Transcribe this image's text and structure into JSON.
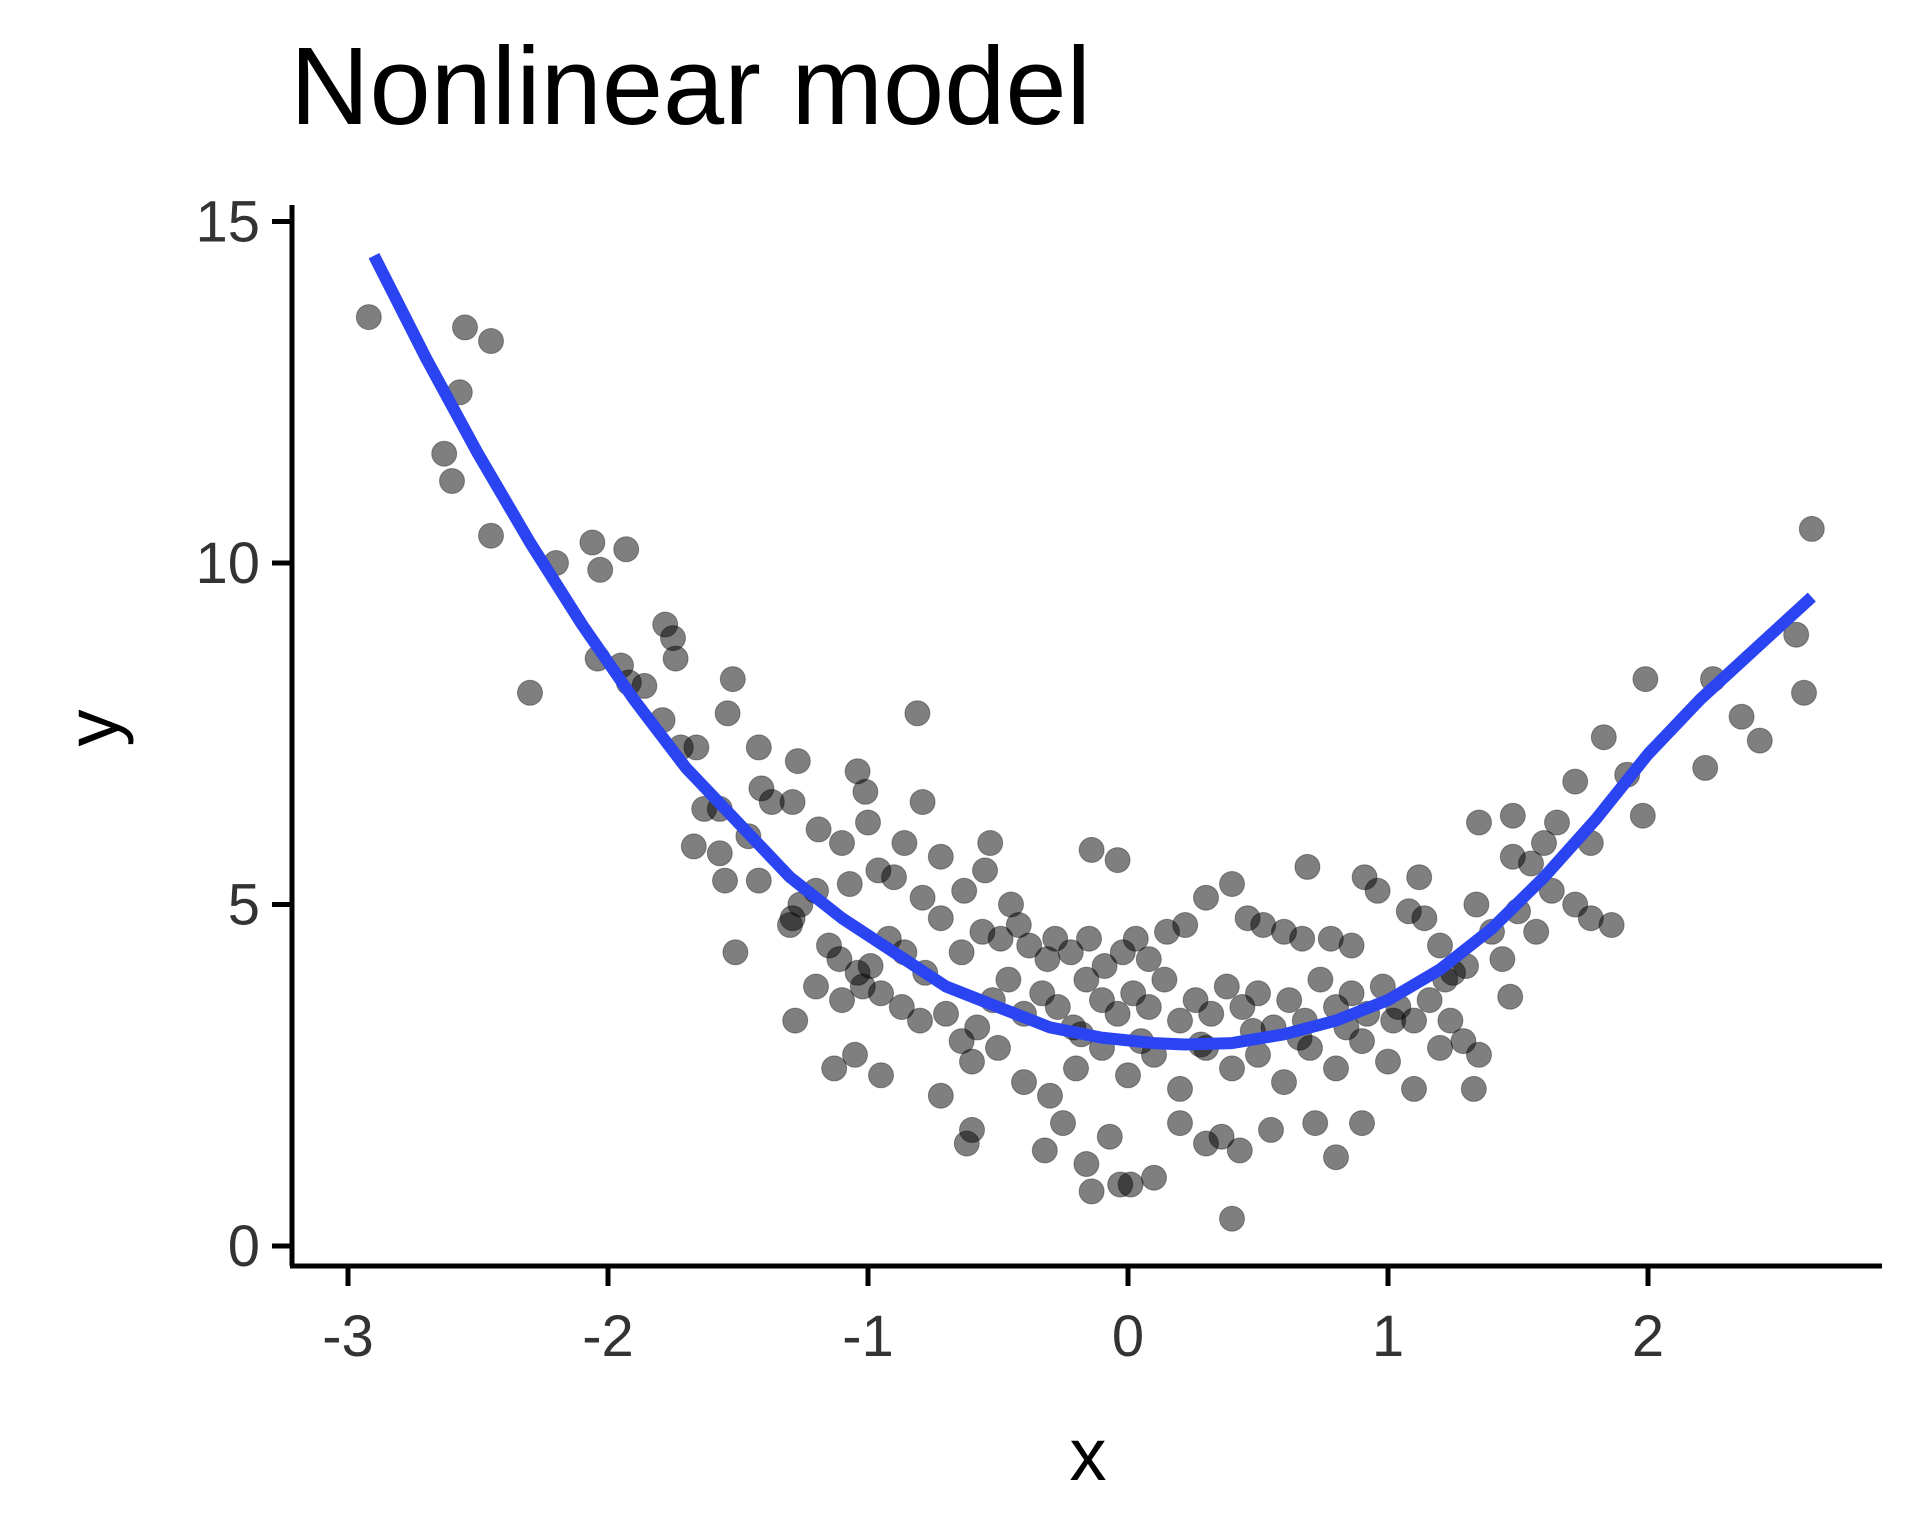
{
  "chart_data": {
    "type": "scatter",
    "title": "Nonlinear model",
    "xlabel": "x",
    "ylabel": "y",
    "xlim": [
      -3.2,
      2.9
    ],
    "ylim": [
      -0.3,
      15.2
    ],
    "x_ticks": [
      -3,
      -2,
      -1,
      0,
      1,
      2
    ],
    "y_ticks": [
      0,
      5,
      10,
      15
    ],
    "x_tick_labels": [
      "-3",
      "-2",
      "-1",
      "0",
      "1",
      "2"
    ],
    "y_tick_labels": [
      "0",
      "5",
      "10",
      "15"
    ],
    "grid": false,
    "points": [
      [
        -2.92,
        13.6
      ],
      [
        -2.55,
        13.45
      ],
      [
        -2.45,
        13.25
      ],
      [
        -2.57,
        12.5
      ],
      [
        -2.63,
        11.6
      ],
      [
        -2.6,
        11.2
      ],
      [
        -2.45,
        10.4
      ],
      [
        -2.2,
        10.0
      ],
      [
        -2.06,
        10.3
      ],
      [
        -2.03,
        9.9
      ],
      [
        -1.93,
        10.2
      ],
      [
        -1.78,
        9.1
      ],
      [
        -1.75,
        8.9
      ],
      [
        -1.74,
        8.6
      ],
      [
        -2.04,
        8.6
      ],
      [
        -1.95,
        8.5
      ],
      [
        -2.3,
        8.1
      ],
      [
        -1.92,
        8.25
      ],
      [
        -1.86,
        8.2
      ],
      [
        -1.52,
        8.3
      ],
      [
        -1.54,
        7.8
      ],
      [
        -1.79,
        7.7
      ],
      [
        -1.72,
        7.3
      ],
      [
        -1.66,
        7.3
      ],
      [
        -1.42,
        7.3
      ],
      [
        -1.27,
        7.1
      ],
      [
        -1.04,
        6.95
      ],
      [
        -0.81,
        7.8
      ],
      [
        -1.63,
        6.4
      ],
      [
        -1.57,
        6.4
      ],
      [
        -1.41,
        6.7
      ],
      [
        -1.37,
        6.5
      ],
      [
        -1.29,
        6.5
      ],
      [
        -1.01,
        6.65
      ],
      [
        -0.79,
        6.5
      ],
      [
        -1.67,
        5.85
      ],
      [
        -1.57,
        5.75
      ],
      [
        -1.46,
        6.0
      ],
      [
        -1.19,
        6.1
      ],
      [
        -1.1,
        5.9
      ],
      [
        -1.0,
        6.2
      ],
      [
        -0.86,
        5.9
      ],
      [
        -0.9,
        5.4
      ],
      [
        -0.72,
        5.7
      ],
      [
        -0.53,
        5.9
      ],
      [
        -0.14,
        5.8
      ],
      [
        -0.04,
        5.65
      ],
      [
        -1.42,
        5.35
      ],
      [
        -1.55,
        5.35
      ],
      [
        -1.51,
        4.3
      ],
      [
        -1.26,
        5.0
      ],
      [
        -1.29,
        4.8
      ],
      [
        -1.3,
        4.7
      ],
      [
        -1.2,
        5.2
      ],
      [
        -1.07,
        5.3
      ],
      [
        -0.96,
        5.5
      ],
      [
        -0.79,
        5.1
      ],
      [
        -0.63,
        5.2
      ],
      [
        -0.55,
        5.5
      ],
      [
        -0.45,
        5.0
      ],
      [
        -1.15,
        4.4
      ],
      [
        -1.11,
        4.2
      ],
      [
        -1.04,
        4.0
      ],
      [
        -0.99,
        4.1
      ],
      [
        -0.92,
        4.5
      ],
      [
        -0.86,
        4.3
      ],
      [
        -0.78,
        4.0
      ],
      [
        -0.72,
        4.8
      ],
      [
        -0.64,
        4.3
      ],
      [
        -0.56,
        4.6
      ],
      [
        -0.49,
        4.5
      ],
      [
        -0.42,
        4.7
      ],
      [
        -0.38,
        4.4
      ],
      [
        -0.31,
        4.2
      ],
      [
        -0.28,
        4.5
      ],
      [
        -0.22,
        4.3
      ],
      [
        -0.15,
        4.5
      ],
      [
        -0.09,
        4.1
      ],
      [
        -0.02,
        4.3
      ],
      [
        0.03,
        4.5
      ],
      [
        0.08,
        4.2
      ],
      [
        0.15,
        4.6
      ],
      [
        0.22,
        4.7
      ],
      [
        0.3,
        5.1
      ],
      [
        0.4,
        5.3
      ],
      [
        0.46,
        4.8
      ],
      [
        0.52,
        4.7
      ],
      [
        0.6,
        4.6
      ],
      [
        0.67,
        4.5
      ],
      [
        0.69,
        5.55
      ],
      [
        0.78,
        4.5
      ],
      [
        0.86,
        4.4
      ],
      [
        0.91,
        5.4
      ],
      [
        0.96,
        5.2
      ],
      [
        1.08,
        4.9
      ],
      [
        1.12,
        5.4
      ],
      [
        1.14,
        4.8
      ],
      [
        1.2,
        4.4
      ],
      [
        1.25,
        4.0
      ],
      [
        -1.2,
        3.8
      ],
      [
        -1.1,
        3.6
      ],
      [
        -1.02,
        3.8
      ],
      [
        -0.95,
        3.7
      ],
      [
        -0.87,
        3.5
      ],
      [
        -0.8,
        3.3
      ],
      [
        -0.7,
        3.4
      ],
      [
        -0.64,
        3.0
      ],
      [
        -0.58,
        3.2
      ],
      [
        -0.52,
        3.6
      ],
      [
        -0.46,
        3.9
      ],
      [
        -0.4,
        3.4
      ],
      [
        -0.33,
        3.7
      ],
      [
        -0.27,
        3.5
      ],
      [
        -0.21,
        3.2
      ],
      [
        -0.16,
        3.9
      ],
      [
        -0.1,
        3.6
      ],
      [
        -0.04,
        3.4
      ],
      [
        0.02,
        3.7
      ],
      [
        0.08,
        3.5
      ],
      [
        0.14,
        3.9
      ],
      [
        0.2,
        3.3
      ],
      [
        0.26,
        3.6
      ],
      [
        0.32,
        3.4
      ],
      [
        0.38,
        3.8
      ],
      [
        0.44,
        3.5
      ],
      [
        0.5,
        3.7
      ],
      [
        0.56,
        3.2
      ],
      [
        0.62,
        3.6
      ],
      [
        0.68,
        3.3
      ],
      [
        0.74,
        3.9
      ],
      [
        0.8,
        3.5
      ],
      [
        0.86,
        3.7
      ],
      [
        0.92,
        3.4
      ],
      [
        0.98,
        3.8
      ],
      [
        1.04,
        3.5
      ],
      [
        1.1,
        3.3
      ],
      [
        1.16,
        3.6
      ],
      [
        1.22,
        3.9
      ],
      [
        -1.28,
        3.3
      ],
      [
        -1.05,
        2.8
      ],
      [
        -1.13,
        2.6
      ],
      [
        -0.95,
        2.5
      ],
      [
        -0.72,
        2.2
      ],
      [
        -0.6,
        2.7
      ],
      [
        -0.5,
        2.9
      ],
      [
        -0.4,
        2.4
      ],
      [
        -0.3,
        2.2
      ],
      [
        -0.2,
        2.6
      ],
      [
        -0.1,
        2.9
      ],
      [
        0.0,
        2.5
      ],
      [
        0.1,
        2.8
      ],
      [
        0.2,
        2.3
      ],
      [
        0.3,
        2.9
      ],
      [
        0.4,
        2.6
      ],
      [
        0.5,
        2.8
      ],
      [
        0.6,
        2.4
      ],
      [
        0.7,
        2.9
      ],
      [
        0.8,
        2.6
      ],
      [
        0.9,
        3.0
      ],
      [
        1.0,
        2.7
      ],
      [
        1.1,
        2.3
      ],
      [
        1.2,
        2.9
      ],
      [
        1.33,
        2.3
      ],
      [
        1.35,
        2.8
      ],
      [
        -0.62,
        1.5
      ],
      [
        -0.6,
        1.7
      ],
      [
        -0.32,
        1.4
      ],
      [
        -0.25,
        1.8
      ],
      [
        -0.16,
        1.2
      ],
      [
        -0.14,
        0.8
      ],
      [
        -0.07,
        1.6
      ],
      [
        -0.03,
        0.9
      ],
      [
        0.01,
        0.9
      ],
      [
        0.1,
        1.0
      ],
      [
        0.2,
        1.8
      ],
      [
        0.3,
        1.5
      ],
      [
        0.36,
        1.6
      ],
      [
        0.43,
        1.4
      ],
      [
        0.4,
        0.4
      ],
      [
        0.55,
        1.7
      ],
      [
        0.72,
        1.8
      ],
      [
        0.8,
        1.3
      ],
      [
        0.9,
        1.8
      ],
      [
        -0.18,
        3.1
      ],
      [
        0.05,
        3.0
      ],
      [
        0.28,
        2.95
      ],
      [
        0.48,
        3.15
      ],
      [
        0.66,
        3.05
      ],
      [
        0.84,
        3.2
      ],
      [
        1.02,
        3.3
      ],
      [
        1.48,
        6.3
      ],
      [
        1.48,
        5.7
      ],
      [
        1.55,
        5.6
      ],
      [
        1.6,
        5.9
      ],
      [
        1.72,
        6.8
      ],
      [
        1.78,
        5.9
      ],
      [
        1.65,
        6.2
      ],
      [
        1.35,
        6.2
      ],
      [
        1.83,
        7.45
      ],
      [
        1.92,
        6.9
      ],
      [
        1.98,
        6.3
      ],
      [
        1.99,
        8.3
      ],
      [
        2.22,
        7.0
      ],
      [
        2.25,
        8.3
      ],
      [
        2.36,
        7.75
      ],
      [
        2.43,
        7.4
      ],
      [
        2.57,
        8.95
      ],
      [
        2.6,
        8.1
      ],
      [
        2.63,
        10.5
      ],
      [
        1.34,
        5.0
      ],
      [
        1.4,
        4.6
      ],
      [
        1.44,
        4.2
      ],
      [
        1.5,
        4.9
      ],
      [
        1.57,
        4.6
      ],
      [
        1.63,
        5.2
      ],
      [
        1.72,
        5.0
      ],
      [
        1.78,
        4.8
      ],
      [
        1.86,
        4.7
      ],
      [
        1.47,
        3.65
      ],
      [
        1.3,
        4.1
      ],
      [
        1.24,
        3.3
      ],
      [
        1.29,
        3.0
      ]
    ],
    "fit_curve": [
      [
        -2.9,
        14.5
      ],
      [
        -2.7,
        13.0
      ],
      [
        -2.5,
        11.6
      ],
      [
        -2.3,
        10.3
      ],
      [
        -2.1,
        9.1
      ],
      [
        -1.9,
        8.0
      ],
      [
        -1.7,
        7.0
      ],
      [
        -1.5,
        6.2
      ],
      [
        -1.3,
        5.4
      ],
      [
        -1.1,
        4.8
      ],
      [
        -0.9,
        4.3
      ],
      [
        -0.7,
        3.8
      ],
      [
        -0.5,
        3.5
      ],
      [
        -0.3,
        3.2
      ],
      [
        -0.1,
        3.05
      ],
      [
        0.1,
        2.97
      ],
      [
        0.22,
        2.95
      ],
      [
        0.4,
        2.97
      ],
      [
        0.6,
        3.1
      ],
      [
        0.8,
        3.3
      ],
      [
        1.0,
        3.6
      ],
      [
        1.2,
        4.05
      ],
      [
        1.4,
        4.65
      ],
      [
        1.6,
        5.4
      ],
      [
        1.8,
        6.25
      ],
      [
        2.0,
        7.2
      ],
      [
        2.2,
        8.0
      ],
      [
        2.4,
        8.7
      ],
      [
        2.63,
        9.5
      ]
    ],
    "point_color": "#000000",
    "point_opacity": 0.5,
    "line_color": "#2b44f1"
  }
}
